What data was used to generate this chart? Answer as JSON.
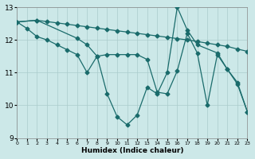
{
  "xlabel": "Humidex (Indice chaleur)",
  "bg_color": "#cce8e8",
  "grid_color": "#aacccc",
  "line_color": "#1a6b6b",
  "xlim": [
    0,
    23
  ],
  "ylim": [
    9,
    13
  ],
  "yticks": [
    9,
    10,
    11,
    12,
    13
  ],
  "xticks": [
    0,
    1,
    2,
    3,
    4,
    5,
    6,
    7,
    8,
    9,
    10,
    11,
    12,
    13,
    14,
    15,
    16,
    17,
    18,
    19,
    20,
    21,
    22,
    23
  ],
  "line1_x": [
    0,
    2,
    3,
    4,
    5,
    6,
    7,
    8,
    9,
    10,
    11,
    12,
    13,
    14,
    15,
    16,
    17,
    18,
    19,
    20,
    21,
    22,
    23
  ],
  "line1_y": [
    12.55,
    12.6,
    12.56,
    12.52,
    12.48,
    12.44,
    12.4,
    12.36,
    12.32,
    12.28,
    12.24,
    12.2,
    12.16,
    12.12,
    12.08,
    12.04,
    12.0,
    11.95,
    11.9,
    11.85,
    11.8,
    11.72,
    11.65
  ],
  "line2_x": [
    0,
    1,
    2,
    3,
    4,
    5,
    6,
    7,
    8,
    9,
    10,
    11,
    12,
    13,
    14,
    15,
    16,
    17,
    18,
    19,
    20,
    21,
    22,
    23
  ],
  "line2_y": [
    12.55,
    12.35,
    12.1,
    12.0,
    11.85,
    11.7,
    11.55,
    11.0,
    11.5,
    11.55,
    11.55,
    11.55,
    11.55,
    11.4,
    10.4,
    10.35,
    11.05,
    12.2,
    11.6,
    10.0,
    11.55,
    11.1,
    10.7,
    9.8
  ],
  "line3_x": [
    0,
    2,
    6,
    7,
    8,
    9,
    10,
    11,
    12,
    13,
    14,
    15,
    16,
    17,
    18,
    20,
    21,
    22,
    23
  ],
  "line3_y": [
    12.55,
    12.6,
    12.05,
    11.85,
    11.5,
    10.35,
    9.65,
    9.4,
    9.7,
    10.55,
    10.35,
    11.0,
    13.0,
    12.3,
    11.85,
    11.6,
    11.1,
    10.65,
    9.8
  ]
}
